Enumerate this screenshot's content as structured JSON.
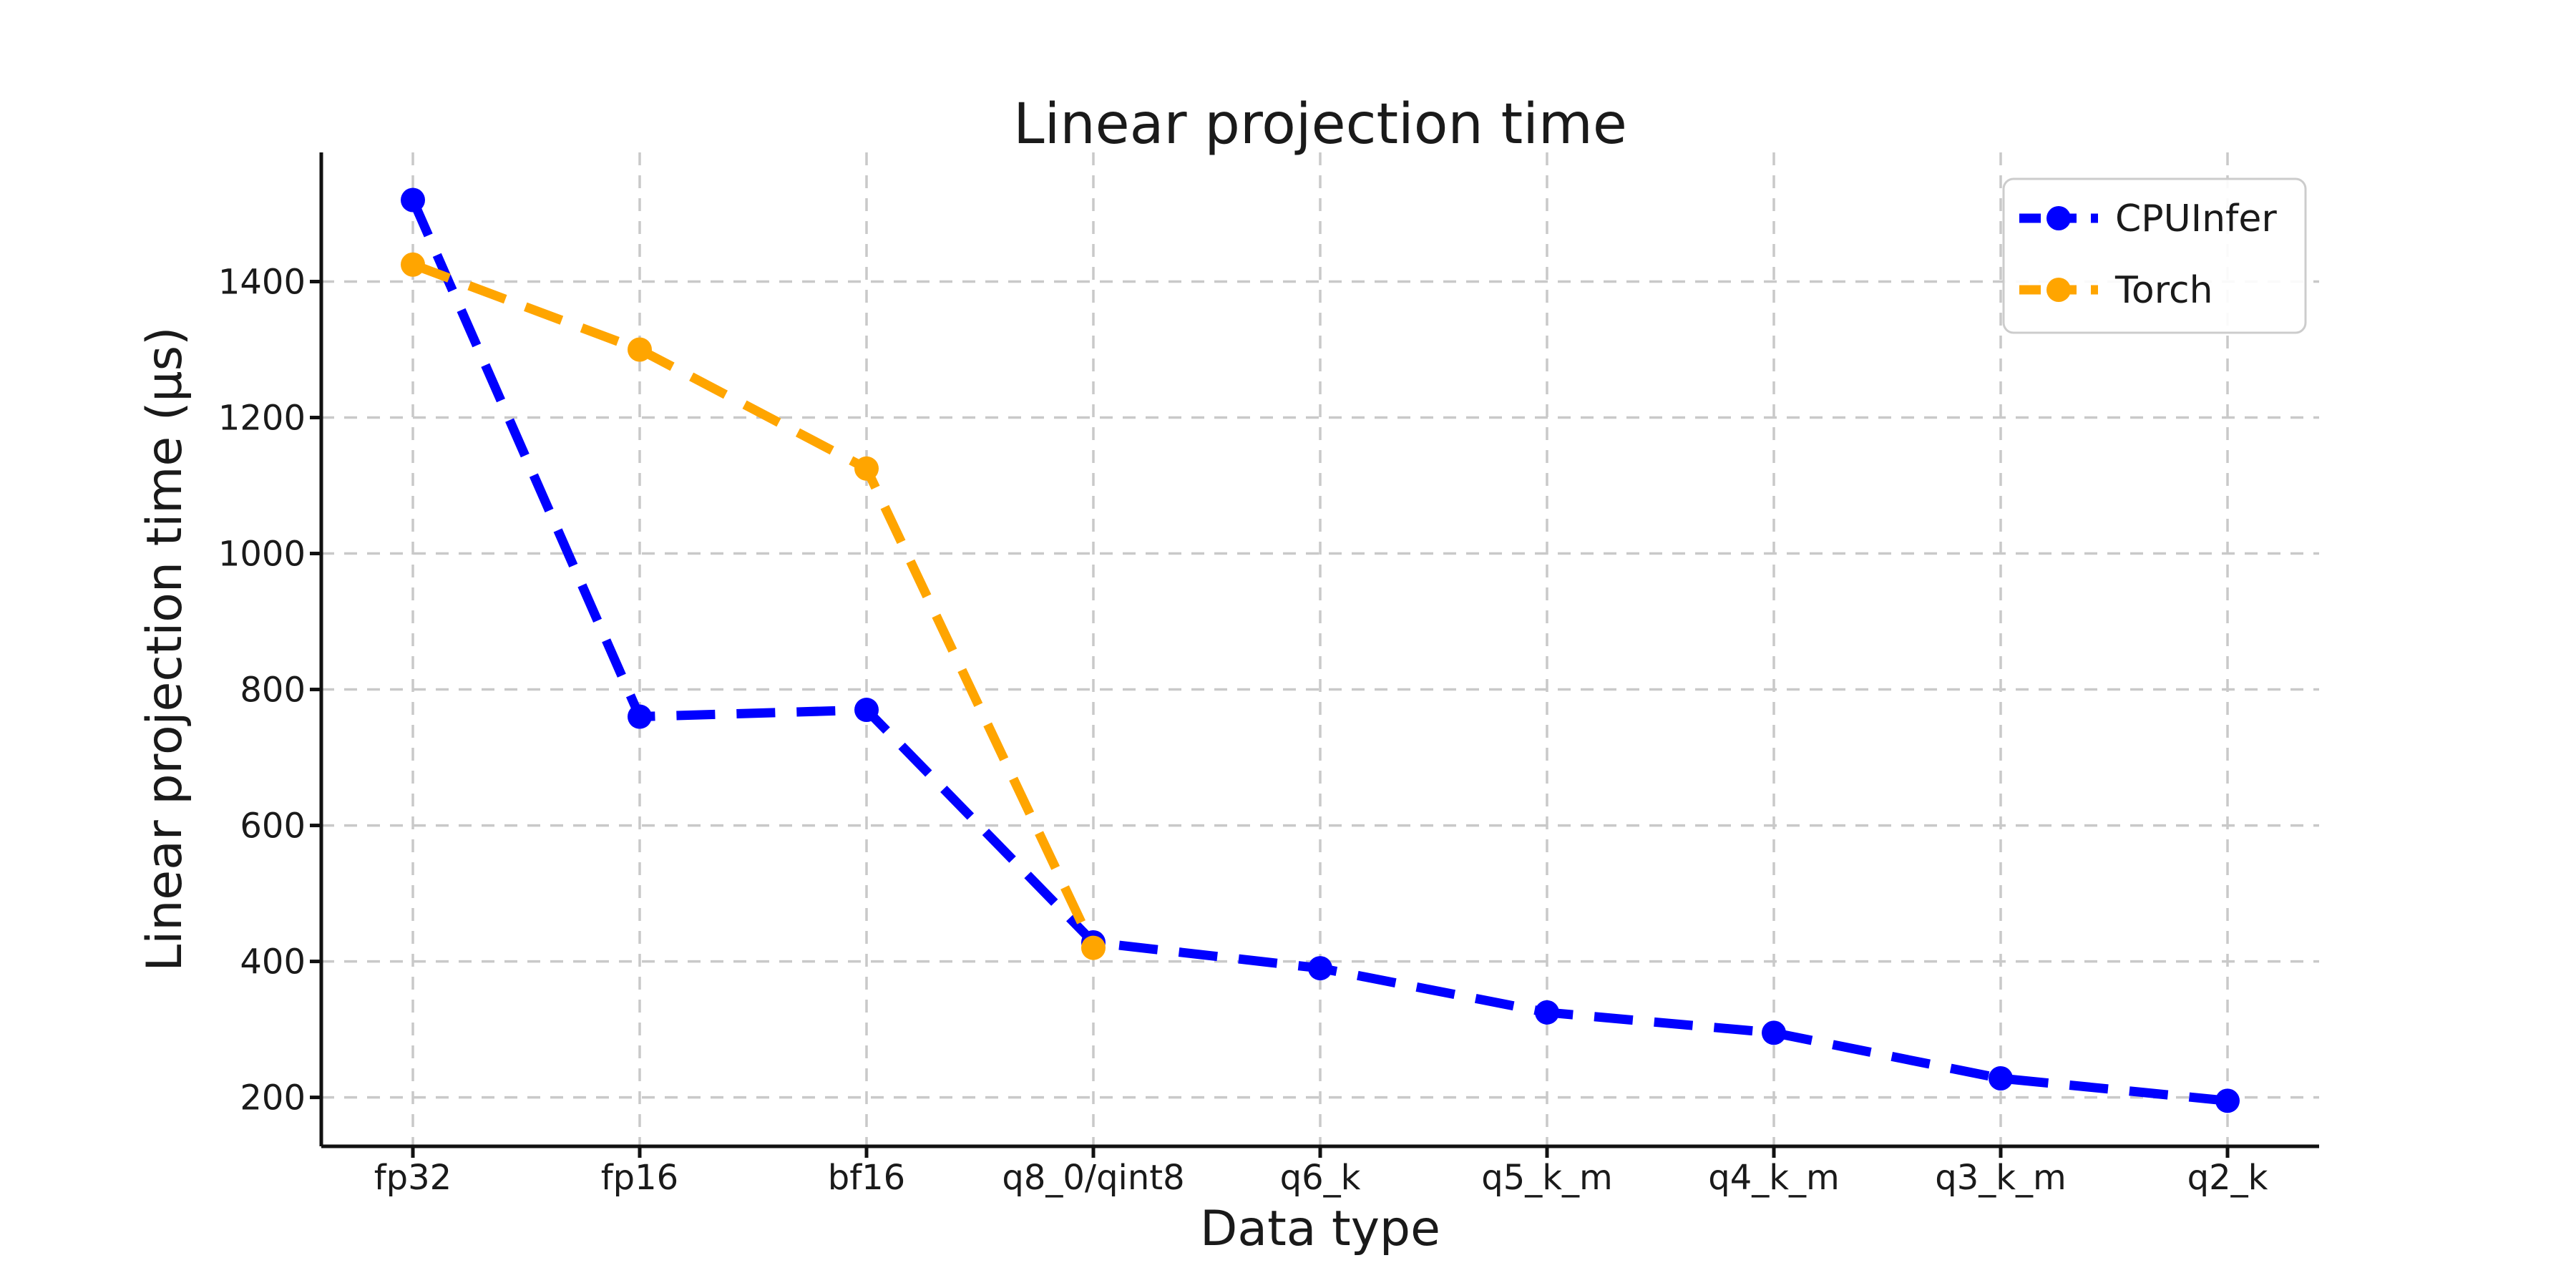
{
  "page": {
    "background": "#ffffff"
  },
  "chart_data": {
    "type": "line",
    "title": "Linear projection time",
    "xlabel": "Data type",
    "ylabel": "Linear projection time (µs)",
    "categories": [
      "fp32",
      "fp16",
      "bf16",
      "q8_0/qint8",
      "q6_k",
      "q5_k_m",
      "q4_k_m",
      "q3_k_m",
      "q2_k"
    ],
    "y_ticks": [
      200,
      400,
      600,
      800,
      1000,
      1200,
      1400
    ],
    "ylim": [
      128,
      1590
    ],
    "grid": true,
    "grid_color": "#c9c9c9",
    "axis_color": "#111111",
    "text_color": "#1a1a1a",
    "legend_position": "upper right",
    "line_style": "dashed",
    "marker": "circle",
    "series": [
      {
        "name": "CPUInfer",
        "color": "#0000ff",
        "values": [
          1520,
          760,
          770,
          428,
          390,
          325,
          295,
          228,
          195
        ]
      },
      {
        "name": "Torch",
        "color": "#ffa500",
        "values": [
          1425,
          1300,
          1125,
          420,
          null,
          null,
          null,
          null,
          null
        ]
      }
    ]
  }
}
